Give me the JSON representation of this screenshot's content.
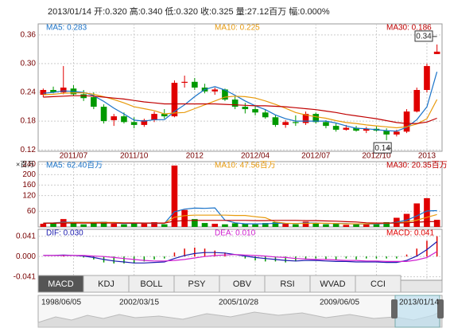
{
  "info": "2013/01/14 开:0.320 高:0.340 低:0.320 收:0.325 量:27.12百万 幅:0.000%",
  "chart_data": [
    {
      "type": "candlestick",
      "categories": [
        null,
        null,
        null,
        "2011/07",
        null,
        null,
        null,
        null,
        null,
        "2011/10",
        null,
        null,
        null,
        null,
        null,
        "2012",
        null,
        null,
        null,
        null,
        null,
        "2012/04",
        null,
        null,
        null,
        null,
        null,
        "2012/07",
        null,
        null,
        null,
        null,
        null,
        "2012/10",
        null,
        null,
        null,
        null,
        "2013",
        null
      ],
      "candles": {
        "open": [
          0.235,
          0.245,
          0.24,
          0.248,
          0.236,
          0.23,
          0.21,
          0.182,
          0.19,
          0.178,
          0.172,
          0.182,
          0.195,
          0.19,
          0.26,
          0.262,
          0.25,
          0.242,
          0.246,
          0.225,
          0.21,
          0.205,
          0.198,
          0.188,
          0.172,
          0.178,
          0.176,
          0.195,
          0.178,
          0.17,
          0.162,
          0.166,
          0.16,
          0.164,
          0.16,
          0.152,
          0.158,
          0.2,
          0.245,
          0.32
        ],
        "high": [
          0.248,
          0.252,
          0.295,
          0.255,
          0.245,
          0.24,
          0.215,
          0.195,
          0.198,
          0.188,
          0.185,
          0.2,
          0.205,
          0.265,
          0.275,
          0.27,
          0.258,
          0.25,
          0.248,
          0.232,
          0.218,
          0.212,
          0.205,
          0.192,
          0.182,
          0.192,
          0.2,
          0.198,
          0.182,
          0.175,
          0.172,
          0.17,
          0.168,
          0.17,
          0.165,
          0.162,
          0.205,
          0.25,
          0.3,
          0.34
        ],
        "low": [
          0.23,
          0.238,
          0.236,
          0.232,
          0.222,
          0.205,
          0.175,
          0.17,
          0.175,
          0.165,
          0.168,
          0.178,
          0.185,
          0.188,
          0.25,
          0.245,
          0.238,
          0.235,
          0.222,
          0.205,
          0.196,
          0.192,
          0.185,
          0.168,
          0.166,
          0.17,
          0.172,
          0.175,
          0.165,
          0.158,
          0.16,
          0.158,
          0.155,
          0.158,
          0.14,
          0.148,
          0.155,
          0.198,
          0.24,
          0.32
        ],
        "close": [
          0.245,
          0.24,
          0.25,
          0.236,
          0.228,
          0.21,
          0.18,
          0.19,
          0.178,
          0.172,
          0.182,
          0.195,
          0.19,
          0.26,
          0.262,
          0.25,
          0.242,
          0.246,
          0.225,
          0.21,
          0.205,
          0.198,
          0.188,
          0.172,
          0.178,
          0.176,
          0.195,
          0.178,
          0.17,
          0.162,
          0.166,
          0.16,
          0.164,
          0.16,
          0.152,
          0.158,
          0.2,
          0.245,
          0.295,
          0.325
        ]
      },
      "up_color": "#e00000",
      "down_color": "#009900",
      "series": [
        {
          "name": "MA5: 0.283",
          "color": "#1a73c9",
          "values": [
            0.238,
            0.24,
            0.243,
            0.242,
            0.24,
            0.233,
            0.221,
            0.207,
            0.195,
            0.182,
            0.18,
            0.183,
            0.183,
            0.2,
            0.214,
            0.231,
            0.246,
            0.252,
            0.245,
            0.234,
            0.222,
            0.212,
            0.204,
            0.193,
            0.185,
            0.18,
            0.18,
            0.18,
            0.18,
            0.176,
            0.17,
            0.165,
            0.164,
            0.162,
            0.16,
            0.159,
            0.167,
            0.183,
            0.21,
            0.283
          ]
        },
        {
          "name": "MA10: 0.225",
          "color": "#e89a0c",
          "values": [
            0.235,
            0.236,
            0.238,
            0.239,
            0.239,
            0.236,
            0.231,
            0.225,
            0.218,
            0.21,
            0.206,
            0.202,
            0.195,
            0.197,
            0.198,
            0.206,
            0.214,
            0.222,
            0.23,
            0.232,
            0.231,
            0.228,
            0.222,
            0.215,
            0.207,
            0.198,
            0.193,
            0.189,
            0.186,
            0.181,
            0.177,
            0.175,
            0.172,
            0.17,
            0.168,
            0.166,
            0.168,
            0.174,
            0.185,
            0.225
          ]
        },
        {
          "name": "MA30: 0.186",
          "color": "#c00000",
          "values": [
            0.23,
            0.231,
            0.232,
            0.233,
            0.233,
            0.232,
            0.23,
            0.228,
            0.226,
            0.223,
            0.22,
            0.218,
            0.216,
            0.216,
            0.216,
            0.216,
            0.216,
            0.216,
            0.215,
            0.214,
            0.213,
            0.212,
            0.212,
            0.211,
            0.21,
            0.208,
            0.206,
            0.204,
            0.201,
            0.198,
            0.194,
            0.191,
            0.188,
            0.185,
            0.181,
            0.177,
            0.175,
            0.175,
            0.178,
            0.186
          ]
        }
      ],
      "annotations": [
        "0.34",
        "0.14"
      ],
      "ylim": [
        0.117,
        0.383
      ],
      "yticks": [
        0.36,
        {
          "value": 0.3,
          "label": "0.30"
        },
        0.24,
        0.18,
        0.12
      ],
      "grid": true
    },
    {
      "type": "volume",
      "unit": "×百万",
      "values": [
        12,
        15,
        30,
        18,
        10,
        14,
        20,
        12,
        10,
        15,
        12,
        18,
        10,
        235,
        65,
        30,
        15,
        12,
        10,
        14,
        12,
        10,
        15,
        18,
        12,
        10,
        20,
        14,
        10,
        12,
        8,
        10,
        12,
        15,
        18,
        35,
        50,
        90,
        110,
        27.12
      ],
      "series": [
        {
          "name": "MA5: 62.40百万",
          "color": "#1a73c9",
          "values": [
            15,
            16,
            18,
            18,
            17,
            17,
            18,
            15,
            13,
            14,
            14,
            13,
            13,
            58,
            68,
            72,
            71,
            73,
            26,
            16,
            12,
            12,
            12,
            14,
            13,
            13,
            15,
            15,
            13,
            13,
            13,
            11,
            11,
            11,
            13,
            18,
            26,
            42,
            61,
            62.4
          ]
        },
        {
          "name": "MA10: 47.56百万",
          "color": "#e89a0c",
          "values": [
            14,
            15,
            16,
            17,
            17,
            17,
            17,
            17,
            16,
            16,
            15,
            15,
            14,
            37,
            43,
            45,
            45,
            45,
            45,
            44,
            44,
            39,
            35,
            19,
            14,
            13,
            13,
            14,
            14,
            13,
            12,
            12,
            12,
            13,
            14,
            16,
            19,
            26,
            37,
            47.56
          ]
        },
        {
          "name": "MA30: 20.35百万",
          "color": "#c00000",
          "values": [
            14,
            14,
            15,
            15,
            15,
            15,
            15,
            15,
            15,
            15,
            15,
            15,
            15,
            22,
            24,
            25,
            25,
            25,
            25,
            25,
            25,
            24,
            24,
            25,
            25,
            25,
            24,
            24,
            23,
            22,
            20,
            19,
            16,
            15,
            15,
            15,
            16,
            18,
            20,
            20.35
          ]
        }
      ],
      "ylim": [
        0,
        250
      ],
      "yticks": [
        240,
        200,
        160,
        120,
        60
      ],
      "grid": true
    },
    {
      "type": "macd",
      "series": [
        {
          "name": "DIF: 0.030",
          "color": "#1c1cb0",
          "values": [
            0.002,
            0.002,
            0.003,
            0.002,
            0.001,
            -0.002,
            -0.006,
            -0.009,
            -0.011,
            -0.013,
            -0.013,
            -0.012,
            -0.011,
            -0.004,
            0.002,
            0.006,
            0.008,
            0.008,
            0.007,
            0.004,
            0.001,
            -0.002,
            -0.004,
            -0.006,
            -0.008,
            -0.009,
            -0.008,
            -0.008,
            -0.009,
            -0.01,
            -0.01,
            -0.011,
            -0.011,
            -0.011,
            -0.012,
            -0.012,
            -0.008,
            0.001,
            0.014,
            0.03
          ]
        },
        {
          "name": "DEA: 0.010",
          "color": "#d020d0",
          "values": [
            0.002,
            0.002,
            0.002,
            0.002,
            0.002,
            0.001,
            0.0,
            -0.002,
            -0.004,
            -0.006,
            -0.008,
            -0.009,
            -0.009,
            -0.008,
            -0.006,
            -0.003,
            0.0,
            0.002,
            0.003,
            0.004,
            0.003,
            0.002,
            0.001,
            -0.001,
            -0.002,
            -0.004,
            -0.005,
            -0.006,
            -0.006,
            -0.007,
            -0.008,
            -0.008,
            -0.009,
            -0.009,
            -0.01,
            -0.01,
            -0.01,
            -0.007,
            -0.002,
            0.01
          ]
        }
      ],
      "bars": {
        "name": "MACD: 0.041",
        "up_color": "#e00000",
        "down_color": "#009900",
        "values": [
          0,
          0,
          0.002,
          0,
          -0.002,
          -0.006,
          -0.012,
          -0.014,
          -0.014,
          -0.014,
          -0.01,
          -0.006,
          -0.004,
          0.008,
          0.016,
          0.018,
          0.016,
          0.012,
          0.008,
          0,
          -0.004,
          -0.008,
          -0.01,
          -0.01,
          -0.012,
          -0.01,
          -0.006,
          -0.004,
          -0.006,
          -0.006,
          -0.004,
          -0.006,
          -0.004,
          -0.004,
          -0.004,
          -0.004,
          0.004,
          0.016,
          0.032,
          0.041
        ]
      },
      "ylim": [
        -0.048,
        0.055
      ],
      "yticks": [
        0.041,
        {
          "value": 0,
          "label": "0.000"
        },
        -0.041
      ],
      "grid": true
    }
  ],
  "tabs": [
    "MACD",
    "KDJ",
    "BOLL",
    "PSY",
    "OBV",
    "RSI",
    "WVAD",
    "CCI"
  ],
  "navigator": [
    "1998/06/05",
    "2002/03/15",
    "2005/10/28",
    "2009/06/05",
    "2013/01/14"
  ]
}
